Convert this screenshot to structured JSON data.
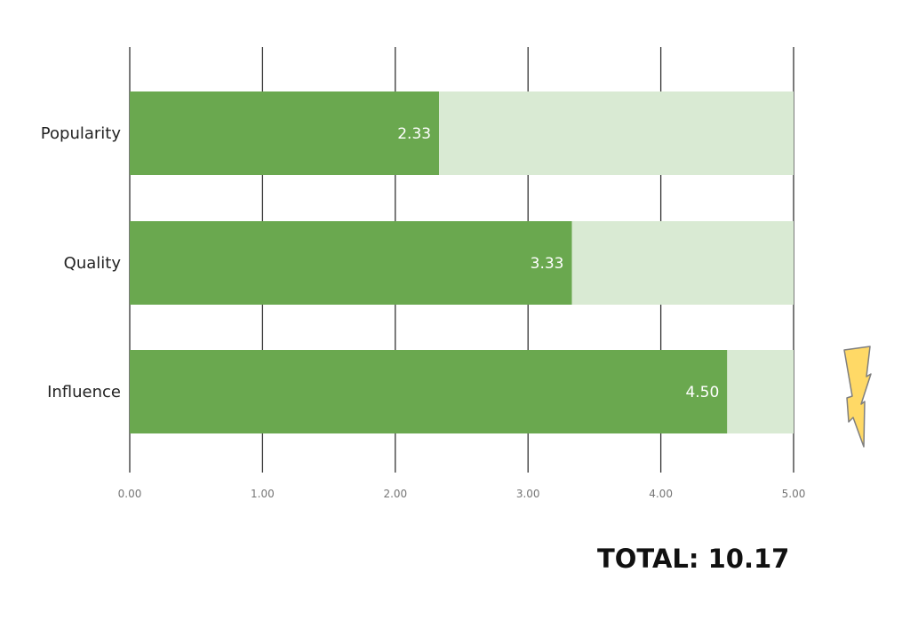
{
  "chart_data": {
    "type": "bar",
    "orientation": "horizontal",
    "stacked": true,
    "categories": [
      "Popularity",
      "Quality",
      "Influence"
    ],
    "series": [
      {
        "values": [
          2.33,
          3.33,
          4.5
        ],
        "color": "#6aa84f"
      },
      {
        "values": [
          2.67,
          1.67,
          0.5
        ],
        "color": "#d9ead3"
      }
    ],
    "data_labels": [
      "2.33",
      "3.33",
      "4.50"
    ],
    "xlim": [
      0,
      5
    ],
    "xticks": [
      0,
      1,
      2,
      3,
      4,
      5
    ],
    "xtick_labels": [
      "0.00",
      "1.00",
      "2.00",
      "3.00",
      "4.00",
      "5.00"
    ],
    "grid": "vertical",
    "legend": "none"
  },
  "total": {
    "text": "TOTAL: 10.17"
  },
  "decoration": {
    "icon": "lightning-bolt-icon",
    "fill": "#ffd966",
    "stroke": "#7f7f7f"
  }
}
